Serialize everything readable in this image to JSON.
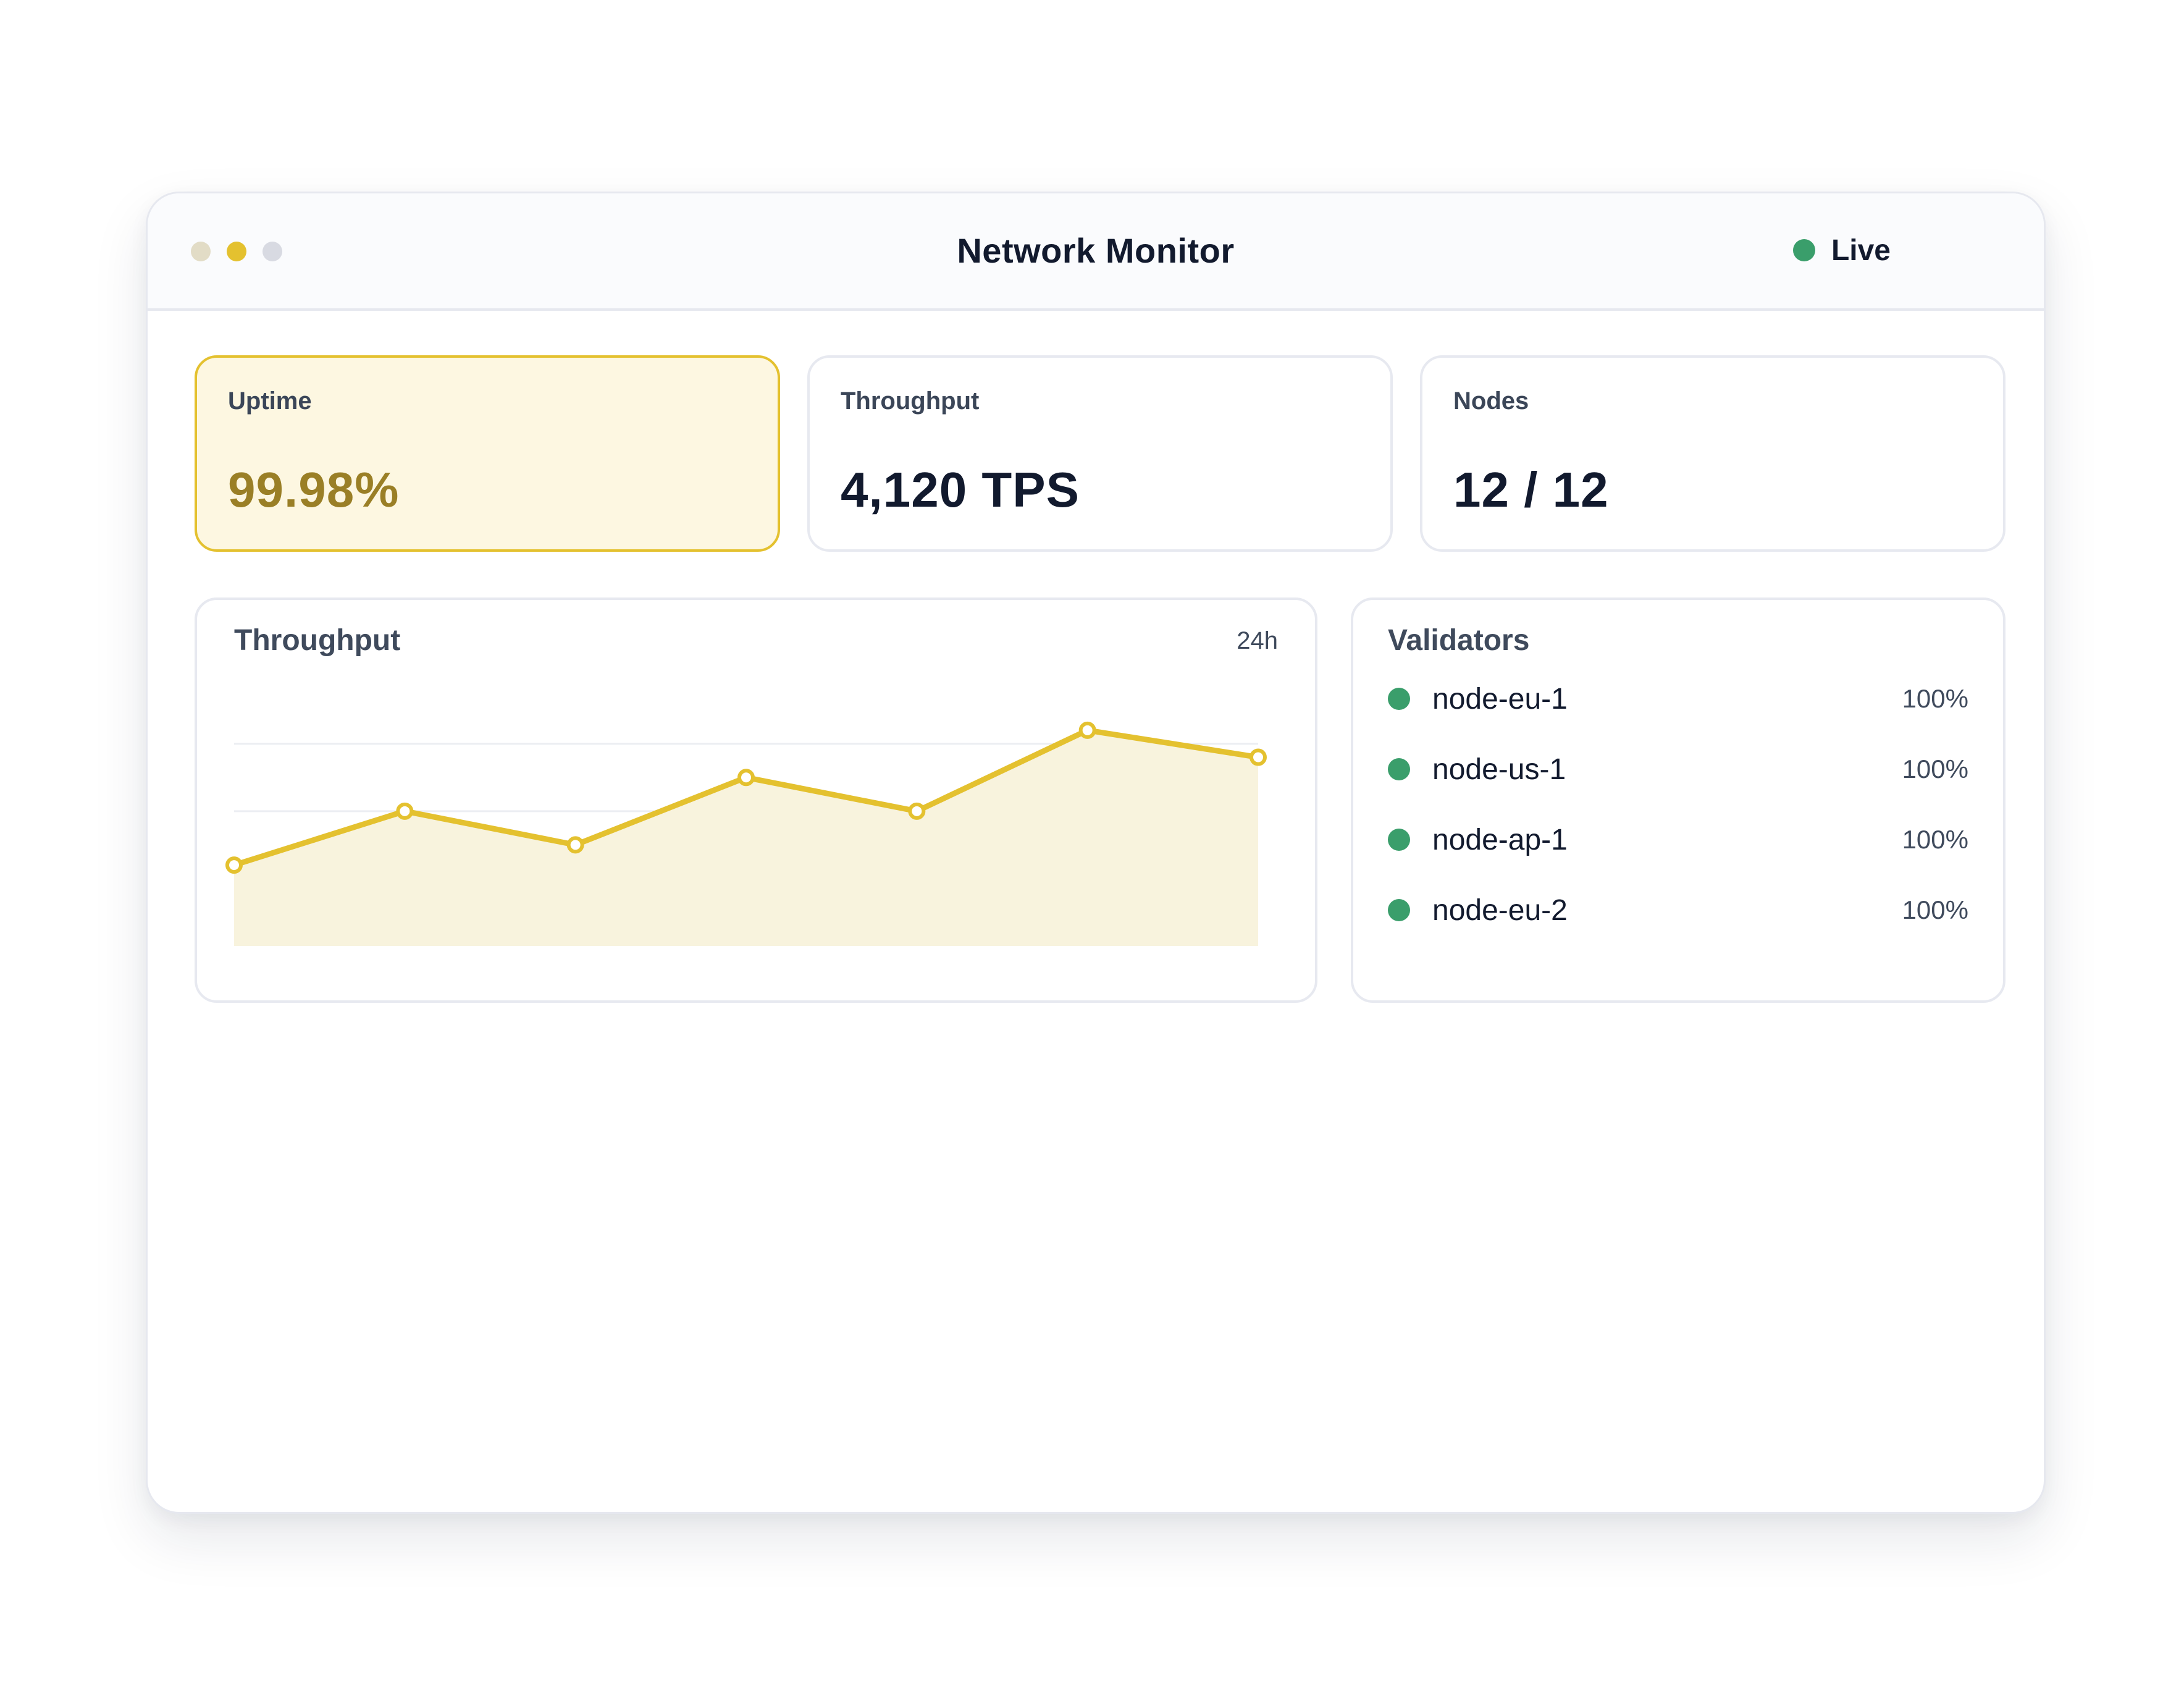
{
  "window": {
    "title": "Network Monitor",
    "controls": [
      {
        "name": "close",
        "color": "#e2dcc6"
      },
      {
        "name": "minimize",
        "color": "#e4c12f"
      },
      {
        "name": "maximize",
        "color": "#d8dae2"
      }
    ],
    "status": {
      "label": "Live",
      "color": "#3a9e6b"
    }
  },
  "stats": [
    {
      "label": "Uptime",
      "value": "99.98%",
      "highlighted": true
    },
    {
      "label": "Throughput",
      "value": "4,120 TPS",
      "highlighted": false
    },
    {
      "label": "Nodes",
      "value": "12 / 12",
      "highlighted": false
    }
  ],
  "throughput_panel": {
    "title": "Throughput",
    "range": "24h"
  },
  "chart_data": {
    "type": "area",
    "series": [
      {
        "values": [
          1.2,
          2.0,
          1.5,
          2.5,
          2.0,
          3.2,
          2.8
        ]
      }
    ],
    "ylim": [
      0,
      3.3
    ],
    "grid": true,
    "line_color": "#e4c12f",
    "fill_color": "#f8f3dd"
  },
  "validators": {
    "title": "Validators",
    "items": [
      {
        "name": "node-eu-1",
        "uptime": "100%"
      },
      {
        "name": "node-us-1",
        "uptime": "100%"
      },
      {
        "name": "node-ap-1",
        "uptime": "100%"
      },
      {
        "name": "node-eu-2",
        "uptime": "100%"
      }
    ],
    "status_color": "#3a9e6b"
  },
  "colors": {
    "accent": "#e4c12f",
    "accent_bg": "#fdf7e1",
    "accent_text": "#9a7f26",
    "text": "#121a2e"
  }
}
